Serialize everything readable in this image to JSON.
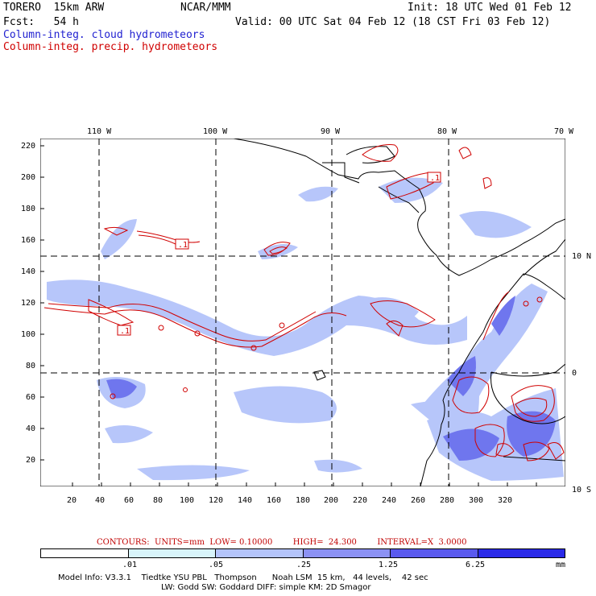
{
  "header": {
    "model_line": "TORERO  15km ARW",
    "center": "NCAR/MMM",
    "init": "Init: 18 UTC Wed 01 Feb 12",
    "fcst": "Fcst:   54 h",
    "valid": "Valid: 00 UTC Sat 04 Feb 12 (18 CST Fri 03 Feb 12)",
    "legend_blue": "Column-integ. cloud hydrometeors",
    "legend_red": "Column-integ. precip. hydrometeors",
    "color_blue": "#1f1fd0",
    "color_red": "#d00000"
  },
  "map": {
    "top_lon_labels": [
      "110 W",
      "100 W",
      "90 W",
      "80 W",
      "70 W"
    ],
    "right_lat_labels": [
      "10 N",
      "0",
      "10 S"
    ],
    "left_y_ticks": [
      "220",
      "200",
      "180",
      "160",
      "140",
      "120",
      "100",
      "80",
      "60",
      "40",
      "20"
    ],
    "bottom_x_ticks": [
      "20",
      "40",
      "60",
      "80",
      "100",
      "120",
      "140",
      "160",
      "180",
      "200",
      "220",
      "240",
      "260",
      "280",
      "300",
      "320"
    ],
    "contour_labels": [
      ".1",
      ".1",
      ".1"
    ]
  },
  "contours_note": "CONTOURS:  UNITS=mm  LOW= 0.10000        HIGH=  24.300        INTERVAL=X  3.0000",
  "colorbar": {
    "labels": [
      ".01",
      ".05",
      ".25",
      "1.25",
      "6.25",
      "mm"
    ],
    "colors": [
      "#ffffff",
      "#d8f4fa",
      "#b4c4fa",
      "#8c92f4",
      "#5a5aee",
      "#2a2ae8"
    ]
  },
  "footer": {
    "line1": "Model Info: V3.3.1    Tiedtke YSU PBL   Thompson      Noah LSM  15 km,   44 levels,    42 sec",
    "line2": "LW: Godd SW: Goddard DIFF: simple KM: 2D Smagor"
  }
}
